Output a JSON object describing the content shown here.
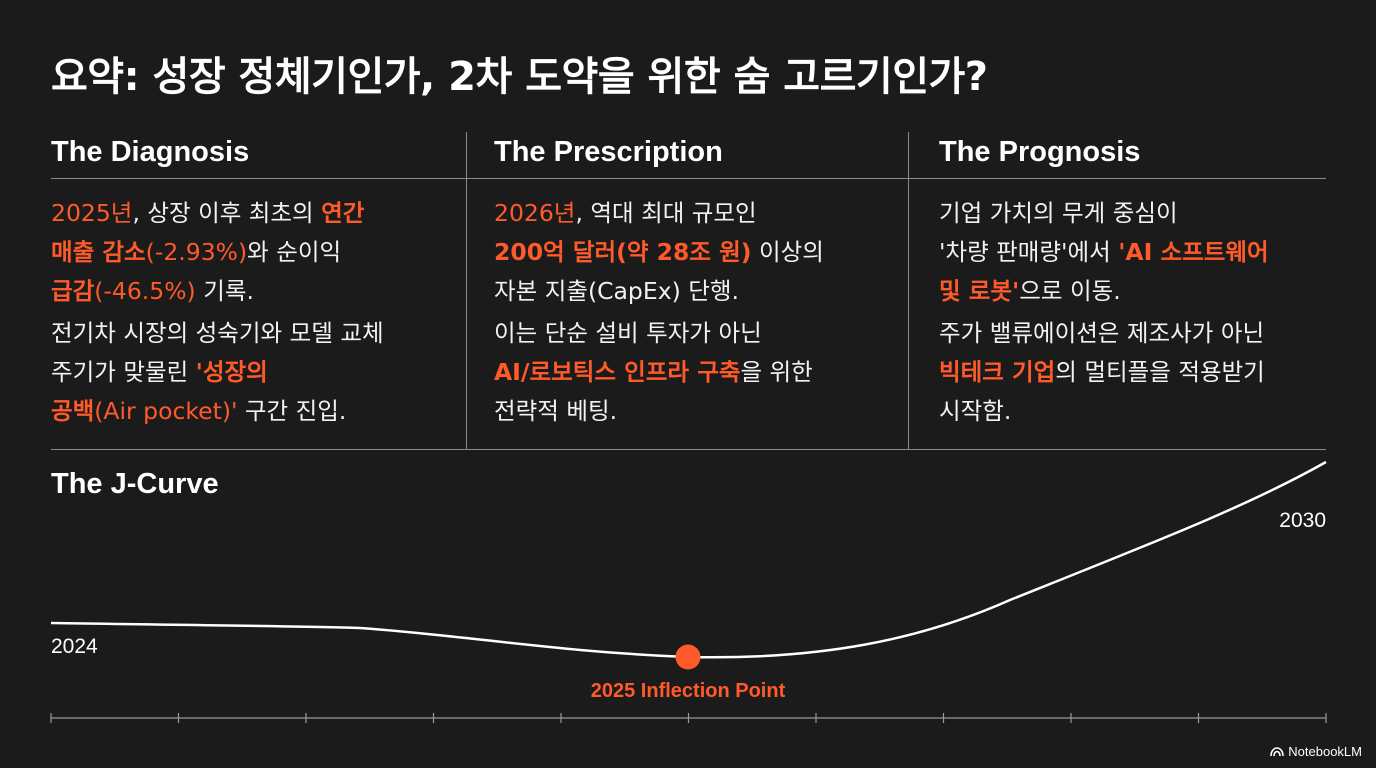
{
  "title": "요약: 성장 정체기인가, 2차 도약을 위한 숨 고르기인가?",
  "columns": [
    {
      "heading": "The Diagnosis",
      "p1": [
        {
          "t": "2025년",
          "s": "hl"
        },
        {
          "t": ", 상장 이후 최초의 ",
          "s": ""
        },
        {
          "t": "연간",
          "s": "hb"
        },
        {
          "br": true
        },
        {
          "t": "매출 감소",
          "s": "hb"
        },
        {
          "t": "(-2.93%)",
          "s": "hl"
        },
        {
          "t": "와 순이익",
          "s": ""
        },
        {
          "br": true
        },
        {
          "t": "급감",
          "s": "hb"
        },
        {
          "t": "(-46.5%)",
          "s": "hl"
        },
        {
          "t": " 기록.",
          "s": ""
        }
      ],
      "p2": [
        {
          "t": "전기차 시장의 성숙기와 모델 교체",
          "s": ""
        },
        {
          "br": true
        },
        {
          "t": "주기가 맞물린 ",
          "s": ""
        },
        {
          "t": "'성장의",
          "s": "hb"
        },
        {
          "br": true
        },
        {
          "t": "공백",
          "s": "hb"
        },
        {
          "t": "(Air pocket)'",
          "s": "hl"
        },
        {
          "t": " 구간 진입.",
          "s": ""
        }
      ]
    },
    {
      "heading": "The Prescription",
      "p1": [
        {
          "t": "2026년",
          "s": "hl"
        },
        {
          "t": ", 역대 최대 규모인",
          "s": ""
        },
        {
          "br": true
        },
        {
          "t": "200억 달러(약 28조 원)",
          "s": "hb"
        },
        {
          "t": " 이상의",
          "s": ""
        },
        {
          "br": true
        },
        {
          "t": "자본 지출(CapEx) 단행.",
          "s": ""
        }
      ],
      "p2": [
        {
          "t": "이는 단순 설비 투자가 아닌",
          "s": ""
        },
        {
          "br": true
        },
        {
          "t": "AI/로보틱스 인프라 구축",
          "s": "hb"
        },
        {
          "t": "을 위한",
          "s": ""
        },
        {
          "br": true
        },
        {
          "t": "전략적 베팅.",
          "s": ""
        }
      ]
    },
    {
      "heading": "The Prognosis",
      "p1": [
        {
          "t": "기업 가치의 무게 중심이",
          "s": ""
        },
        {
          "br": true
        },
        {
          "t": "'차량 판매량'에서 ",
          "s": ""
        },
        {
          "t": "'AI 소프트웨어",
          "s": "hb"
        },
        {
          "br": true
        },
        {
          "t": "및 로봇'",
          "s": "hb"
        },
        {
          "t": "으로 이동.",
          "s": ""
        }
      ],
      "p2": [
        {
          "t": "주가 밸류에이션은 제조사가 아닌",
          "s": ""
        },
        {
          "br": true
        },
        {
          "t": "빅테크 기업",
          "s": "hb"
        },
        {
          "t": "의 멀티플을 적용받기",
          "s": ""
        },
        {
          "br": true
        },
        {
          "t": "시작함.",
          "s": ""
        }
      ]
    }
  ],
  "jcurve": {
    "title": "The J-Curve",
    "start_label": "2024",
    "end_label": "2030",
    "inflection_label": "2025 Inflection Point"
  },
  "colors": {
    "accent": "#ff5a2a",
    "background": "#1c1b1b",
    "divider": "#8a8a8a"
  },
  "brand": {
    "label": "NotebookLM",
    "icon": "notebooklm-icon"
  }
}
